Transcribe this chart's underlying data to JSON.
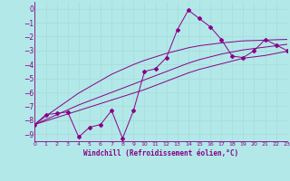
{
  "xlabel": "Windchill (Refroidissement éolien,°C)",
  "background_color": "#b2e8e8",
  "line_color": "#880088",
  "grid_color": "#aadddd",
  "x_data": [
    0,
    1,
    2,
    3,
    4,
    5,
    6,
    7,
    8,
    9,
    10,
    11,
    12,
    13,
    14,
    15,
    16,
    17,
    18,
    19,
    20,
    21,
    22,
    23
  ],
  "y_main": [
    -8.3,
    -7.6,
    -7.5,
    -7.4,
    -9.2,
    -8.5,
    -8.3,
    -7.3,
    -9.3,
    -7.3,
    -4.5,
    -4.3,
    -3.5,
    -1.5,
    -0.1,
    -0.7,
    -1.3,
    -2.2,
    -3.4,
    -3.5,
    -3.0,
    -2.2,
    -2.6,
    -3.0
  ],
  "y_line1": [
    -8.3,
    -7.7,
    -7.15,
    -6.6,
    -6.05,
    -5.6,
    -5.15,
    -4.7,
    -4.35,
    -4.0,
    -3.7,
    -3.45,
    -3.2,
    -3.0,
    -2.8,
    -2.65,
    -2.55,
    -2.45,
    -2.38,
    -2.3,
    -2.28,
    -2.25,
    -2.22,
    -2.2
  ],
  "y_line2": [
    -8.3,
    -7.95,
    -7.6,
    -7.25,
    -6.9,
    -6.6,
    -6.3,
    -6.0,
    -5.7,
    -5.4,
    -5.1,
    -4.8,
    -4.5,
    -4.2,
    -3.9,
    -3.65,
    -3.45,
    -3.25,
    -3.1,
    -2.95,
    -2.85,
    -2.75,
    -2.65,
    -2.55
  ],
  "y_line3": [
    -8.3,
    -8.05,
    -7.8,
    -7.55,
    -7.3,
    -7.05,
    -6.8,
    -6.55,
    -6.3,
    -6.05,
    -5.8,
    -5.5,
    -5.2,
    -4.9,
    -4.6,
    -4.35,
    -4.15,
    -3.95,
    -3.75,
    -3.55,
    -3.45,
    -3.35,
    -3.2,
    -3.05
  ],
  "xlim": [
    0,
    23
  ],
  "ylim": [
    -9.5,
    0.5
  ],
  "yticks": [
    0,
    -1,
    -2,
    -3,
    -4,
    -5,
    -6,
    -7,
    -8,
    -9
  ],
  "xticks": [
    0,
    1,
    2,
    3,
    4,
    5,
    6,
    7,
    8,
    9,
    10,
    11,
    12,
    13,
    14,
    15,
    16,
    17,
    18,
    19,
    20,
    21,
    22,
    23
  ]
}
